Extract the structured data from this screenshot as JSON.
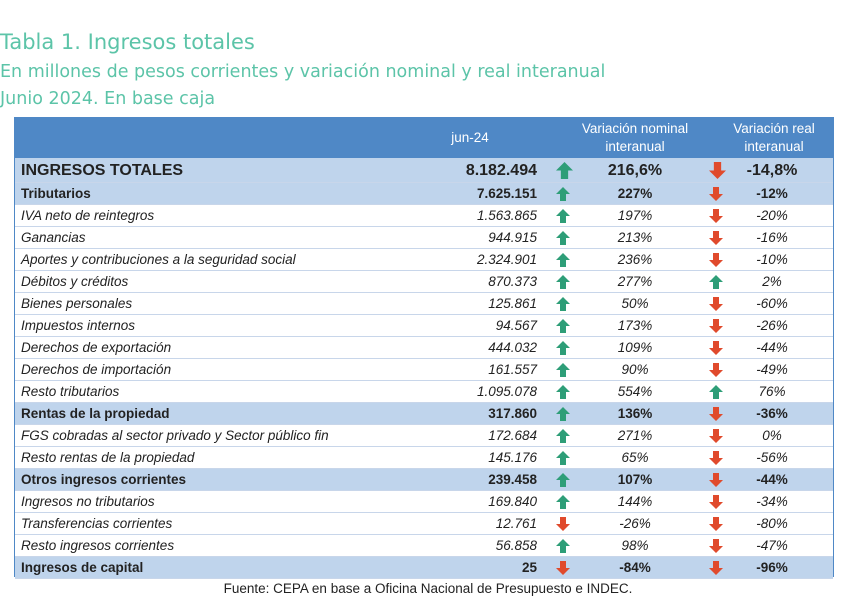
{
  "title": "Tabla 1. Ingresos totales",
  "subtitle": "En millones de pesos corrientes y variación nominal y real interanual",
  "subtitle2": "Junio 2024. En base caja",
  "source": "Fuente: CEPA en base a Oficina Nacional de Presupuesto e INDEC.",
  "colors": {
    "accent_title": "#5cc4a8",
    "header_bg": "#4f88c6",
    "bold_row_bg": "#bfd4ec",
    "up": "#2e9e78",
    "down": "#e04a2c"
  },
  "chart_data": {
    "type": "table",
    "columns": [
      "jun-24",
      "Variación nominal interanual",
      "Variación real interanual"
    ],
    "rows": [
      {
        "label": "INGRESOS TOTALES",
        "value": "8.182.494",
        "nominal": "216,6%",
        "nominal_dir": "up",
        "real": "-14,8%",
        "real_dir": "down",
        "style": "total"
      },
      {
        "label": "Tributarios",
        "value": "7.625.151",
        "nominal": "227%",
        "nominal_dir": "up",
        "real": "-12%",
        "real_dir": "down",
        "style": "bold"
      },
      {
        "label": "IVA neto de reintegros",
        "value": "1.563.865",
        "nominal": "197%",
        "nominal_dir": "up",
        "real": "-20%",
        "real_dir": "down",
        "style": "plain"
      },
      {
        "label": "Ganancias",
        "value": "944.915",
        "nominal": "213%",
        "nominal_dir": "up",
        "real": "-16%",
        "real_dir": "down",
        "style": "plain"
      },
      {
        "label": "Aportes y contribuciones a la seguridad social",
        "value": "2.324.901",
        "nominal": "236%",
        "nominal_dir": "up",
        "real": "-10%",
        "real_dir": "down",
        "style": "plain"
      },
      {
        "label": "Débitos y créditos",
        "value": "870.373",
        "nominal": "277%",
        "nominal_dir": "up",
        "real": "2%",
        "real_dir": "up",
        "style": "plain"
      },
      {
        "label": "Bienes personales",
        "value": "125.861",
        "nominal": "50%",
        "nominal_dir": "up",
        "real": "-60%",
        "real_dir": "down",
        "style": "plain"
      },
      {
        "label": "Impuestos internos",
        "value": "94.567",
        "nominal": "173%",
        "nominal_dir": "up",
        "real": "-26%",
        "real_dir": "down",
        "style": "plain"
      },
      {
        "label": "Derechos de exportación",
        "value": "444.032",
        "nominal": "109%",
        "nominal_dir": "up",
        "real": "-44%",
        "real_dir": "down",
        "style": "plain"
      },
      {
        "label": "Derechos de importación",
        "value": "161.557",
        "nominal": "90%",
        "nominal_dir": "up",
        "real": "-49%",
        "real_dir": "down",
        "style": "plain"
      },
      {
        "label": "Resto tributarios",
        "value": "1.095.078",
        "nominal": "554%",
        "nominal_dir": "up",
        "real": "76%",
        "real_dir": "up",
        "style": "plain"
      },
      {
        "label": "Rentas de la propiedad",
        "value": "317.860",
        "nominal": "136%",
        "nominal_dir": "up",
        "real": "-36%",
        "real_dir": "down",
        "style": "bold"
      },
      {
        "label": "FGS cobradas al sector privado y Sector público fin",
        "value": "172.684",
        "nominal": "271%",
        "nominal_dir": "up",
        "real": "0%",
        "real_dir": "down",
        "style": "plain"
      },
      {
        "label": "Resto rentas de la propiedad",
        "value": "145.176",
        "nominal": "65%",
        "nominal_dir": "up",
        "real": "-56%",
        "real_dir": "down",
        "style": "plain"
      },
      {
        "label": "Otros ingresos corrientes",
        "value": "239.458",
        "nominal": "107%",
        "nominal_dir": "up",
        "real": "-44%",
        "real_dir": "down",
        "style": "bold"
      },
      {
        "label": "Ingresos no tributarios",
        "value": "169.840",
        "nominal": "144%",
        "nominal_dir": "up",
        "real": "-34%",
        "real_dir": "down",
        "style": "plain"
      },
      {
        "label": "Transferencias corrientes",
        "value": "12.761",
        "nominal": "-26%",
        "nominal_dir": "down",
        "real": "-80%",
        "real_dir": "down",
        "style": "plain"
      },
      {
        "label": "Resto ingresos corrientes",
        "value": "56.858",
        "nominal": "98%",
        "nominal_dir": "up",
        "real": "-47%",
        "real_dir": "down",
        "style": "plain"
      },
      {
        "label": "Ingresos de capital",
        "value": "25",
        "nominal": "-84%",
        "nominal_dir": "down",
        "real": "-96%",
        "real_dir": "down",
        "style": "bold"
      }
    ]
  }
}
